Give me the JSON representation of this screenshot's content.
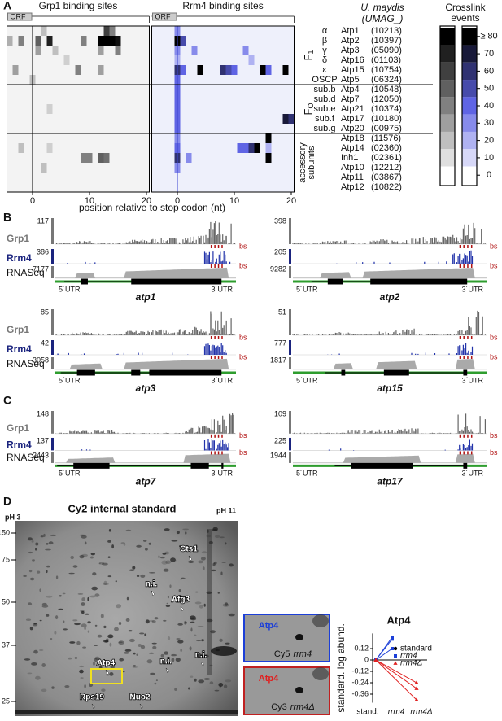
{
  "panel_labels": [
    "A",
    "B",
    "C",
    "D"
  ],
  "panel_a": {
    "grp1_title": "Grp1 binding sites",
    "rrm4_title": "Rrm4 binding sites",
    "orf_label": "ORF",
    "x_label": "position relative to stop codon (nt)",
    "xticks": [
      0,
      10,
      20
    ],
    "xlim": [
      -4.5,
      20.5
    ],
    "species": "U. maydis",
    "id_header": "(UMAG_)",
    "groups": [
      {
        "name": "F",
        "subscript": "1",
        "rows": [
          {
            "subunit": "α",
            "gene": "Atp1",
            "id": "(10213)"
          },
          {
            "subunit": "β",
            "gene": "Atp2",
            "id": "(10397)"
          },
          {
            "subunit": "γ",
            "gene": "Atp3",
            "id": "(05090)"
          },
          {
            "subunit": "δ",
            "gene": "Atp16",
            "id": "(01103)"
          },
          {
            "subunit": "ε",
            "gene": "Atp15",
            "id": "(10754)"
          },
          {
            "subunit": "OSCP",
            "gene": "Atp5",
            "id": "(06324)"
          }
        ]
      },
      {
        "name": "F",
        "subscript": "O",
        "rows": [
          {
            "subunit": "sub.b",
            "gene": "Atp4",
            "id": "(10548)"
          },
          {
            "subunit": "sub.d",
            "gene": "Atp7",
            "id": "(12050)"
          },
          {
            "subunit": "sub.e",
            "gene": "Atp21",
            "id": "(10374)"
          },
          {
            "subunit": "sub.f",
            "gene": "Atp17",
            "id": "(10180)"
          },
          {
            "subunit": "sub.g",
            "gene": "Atp20",
            "id": "(00975)"
          }
        ]
      },
      {
        "name": [
          "accessory",
          "subunits"
        ],
        "rows": [
          {
            "gene": "Atp18",
            "id": "(11576)"
          },
          {
            "gene": "Atp14",
            "id": "(02360)"
          },
          {
            "gene": "Inh1",
            "id": "(02361)"
          },
          {
            "gene": "Atp10",
            "id": "(12212)"
          },
          {
            "gene": "Atp11",
            "id": "(03867)"
          },
          {
            "gene": "Atp12",
            "id": "(10822)"
          }
        ]
      }
    ],
    "grp1_cells": [
      [
        0,
        2,
        20
      ],
      [
        0,
        13,
        60
      ],
      [
        0,
        14,
        40
      ],
      [
        1,
        -4,
        25
      ],
      [
        1,
        -2,
        40
      ],
      [
        1,
        1,
        50
      ],
      [
        1,
        3,
        70
      ],
      [
        1,
        9,
        40
      ],
      [
        1,
        12,
        85
      ],
      [
        1,
        13,
        85
      ],
      [
        1,
        14,
        85
      ],
      [
        1,
        15,
        75
      ],
      [
        2,
        1,
        30
      ],
      [
        2,
        4,
        20
      ],
      [
        2,
        12,
        30
      ],
      [
        2,
        15,
        40
      ],
      [
        3,
        6,
        15
      ],
      [
        4,
        -3,
        30
      ],
      [
        4,
        8,
        40
      ],
      [
        4,
        12,
        30
      ],
      [
        5,
        0,
        20
      ],
      [
        8,
        3,
        15
      ],
      [
        12,
        -2,
        20
      ],
      [
        12,
        3,
        15
      ],
      [
        13,
        9,
        40
      ],
      [
        13,
        10,
        40
      ],
      [
        13,
        12,
        50
      ],
      [
        13,
        13,
        45
      ],
      [
        14,
        2,
        20
      ]
    ],
    "rrm4_cells": [
      [
        0,
        0,
        30
      ],
      [
        1,
        0,
        80
      ],
      [
        1,
        1,
        50
      ],
      [
        2,
        0,
        30
      ],
      [
        2,
        3,
        30
      ],
      [
        2,
        12,
        30
      ],
      [
        3,
        0,
        20
      ],
      [
        3,
        13,
        20
      ],
      [
        4,
        0,
        60
      ],
      [
        4,
        1,
        40
      ],
      [
        4,
        4,
        80
      ],
      [
        4,
        8,
        60
      ],
      [
        4,
        9,
        50
      ],
      [
        4,
        10,
        40
      ],
      [
        4,
        15,
        80
      ],
      [
        4,
        16,
        40
      ],
      [
        4,
        19,
        80
      ],
      [
        5,
        0,
        40
      ],
      [
        6,
        0,
        40
      ],
      [
        7,
        0,
        40
      ],
      [
        8,
        0,
        40
      ],
      [
        9,
        0,
        40
      ],
      [
        9,
        19,
        70
      ],
      [
        9,
        20,
        60
      ],
      [
        10,
        0,
        40
      ],
      [
        11,
        0,
        30
      ],
      [
        11,
        16,
        80
      ],
      [
        12,
        0,
        40
      ],
      [
        12,
        11,
        40
      ],
      [
        12,
        12,
        40
      ],
      [
        12,
        13,
        60
      ],
      [
        12,
        14,
        80
      ],
      [
        12,
        16,
        20
      ],
      [
        13,
        0,
        60
      ],
      [
        13,
        2,
        30
      ],
      [
        13,
        16,
        80
      ],
      [
        14,
        0,
        30
      ]
    ],
    "colorbar": {
      "title": [
        "Crosslink",
        "events"
      ],
      "lim": [
        -6,
        86
      ],
      "ticks": [
        {
          "value": 80,
          "label": "≥ 80"
        },
        70,
        60,
        50,
        40,
        30,
        20,
        10,
        0
      ]
    }
  },
  "tracks": {
    "names": [
      "Grp1",
      "Rrm4",
      "RNASeq"
    ],
    "bs_label": "bs",
    "utr5": "5´UTR",
    "utr3": "3´UTR"
  },
  "panel_b": {
    "genes": [
      {
        "name": "atp1",
        "grp1_max": 117,
        "rrm4_max": 386,
        "rnaseq_max": 7177
      },
      {
        "name": "atp2",
        "grp1_max": 398,
        "rrm4_max": 205,
        "rnaseq_max": 9282
      },
      {
        "name": "atp3",
        "grp1_max": 85,
        "rrm4_max": 42,
        "rnaseq_max": 3058
      },
      {
        "name": "atp15",
        "grp1_max": 51,
        "rrm4_max": 777,
        "rnaseq_max": 1817
      }
    ]
  },
  "panel_c": {
    "genes": [
      {
        "name": "atp7",
        "grp1_max": 148,
        "rrm4_max": 137,
        "rnaseq_max": 2443
      },
      {
        "name": "atp17",
        "grp1_max": 109,
        "rrm4_max": 225,
        "rnaseq_max": 1944
      }
    ]
  },
  "panel_d": {
    "gel": {
      "title": "Cy2 internal standard",
      "ph_left": "pH 3",
      "ph_right": "pH 11",
      "mw_markers": [
        150,
        75,
        50,
        37,
        25
      ],
      "spots": [
        "Cts1",
        "n.i.",
        "Afg3",
        "Atp4",
        "n.i.",
        "n.i.",
        "Rps19",
        "Nuo2"
      ]
    },
    "zoom": [
      {
        "protein": "Atp4",
        "channel": "Cy5",
        "strain": "rrm4"
      },
      {
        "protein": "Atp4",
        "channel": "Cy3",
        "strain": "rrm4Δ"
      }
    ],
    "chart_data": {
      "type": "line",
      "title": "Atp4",
      "y_label": "standard. log abund.",
      "categories": [
        "stand.",
        "rrm4",
        "rrm4Δ"
      ],
      "ylim": [
        -0.45,
        0.28
      ],
      "yticks": [
        0.12,
        0,
        -0.12,
        -0.24,
        -0.36
      ],
      "series": [
        {
          "name": "standard",
          "color": "#000000",
          "marker": "circle",
          "values": [
            0,
            null,
            null
          ]
        },
        {
          "name": "rrm4",
          "color": "#1c3fd8",
          "marker": "square",
          "replicates": [
            [
              0,
              0.24,
              null
            ],
            [
              0,
              0.22,
              null
            ],
            [
              0,
              0.12,
              null
            ]
          ]
        },
        {
          "name": "rrm4Δ",
          "color": "#e02020",
          "marker": "triangle",
          "replicates": [
            [
              0,
              null,
              -0.24
            ],
            [
              0,
              null,
              -0.3
            ],
            [
              0,
              null,
              -0.42
            ]
          ]
        }
      ]
    }
  }
}
